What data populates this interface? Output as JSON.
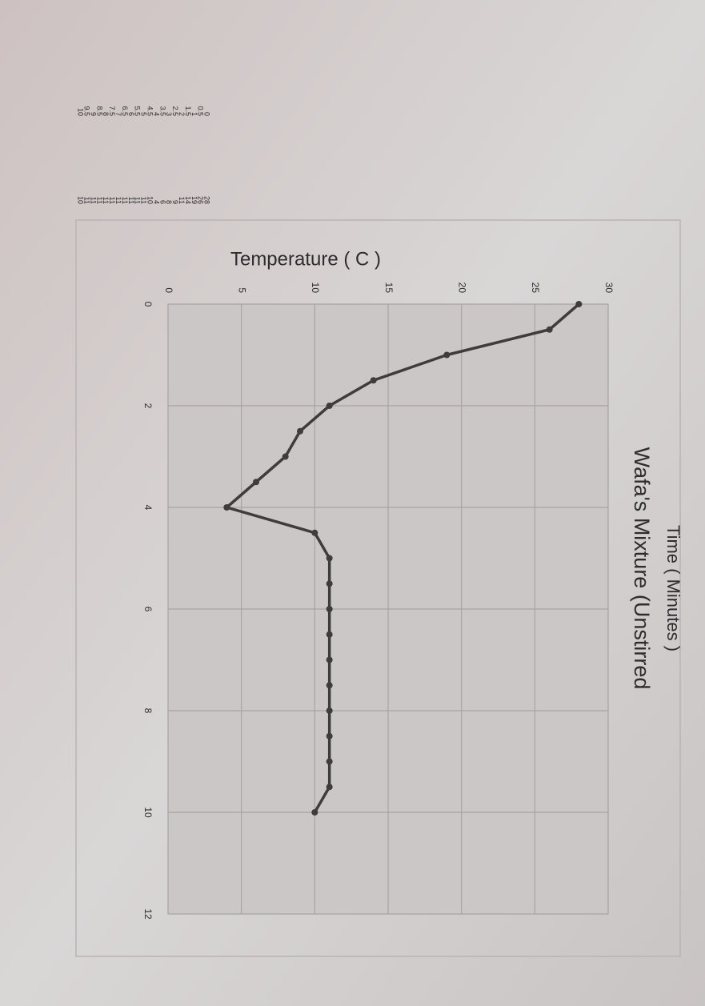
{
  "chart_data": {
    "type": "line",
    "title": "Wafa's Mixture (Unstirred",
    "x_label": "Time ( Minutes )",
    "y_label": "Temperature ( C )",
    "x": [
      0,
      0.5,
      1,
      1.5,
      2,
      2.5,
      3,
      3.5,
      4,
      4.5,
      5,
      5.5,
      6,
      6.5,
      7,
      7.5,
      8,
      8.5,
      9,
      9.5,
      10
    ],
    "series": [
      {
        "color": "#3f3c3d",
        "values": [
          28,
          26,
          19,
          14,
          11,
          9,
          8,
          6,
          4,
          10,
          11,
          11,
          11,
          11,
          11,
          11,
          11,
          11,
          11,
          11,
          10
        ]
      }
    ],
    "xlim": [
      0,
      12
    ],
    "xticks": [
      0,
      2,
      4,
      6,
      8,
      10,
      12
    ],
    "ylim": [
      0,
      30
    ],
    "yticks": [
      0,
      5,
      10,
      15,
      20,
      25,
      30
    ],
    "grid": true
  }
}
